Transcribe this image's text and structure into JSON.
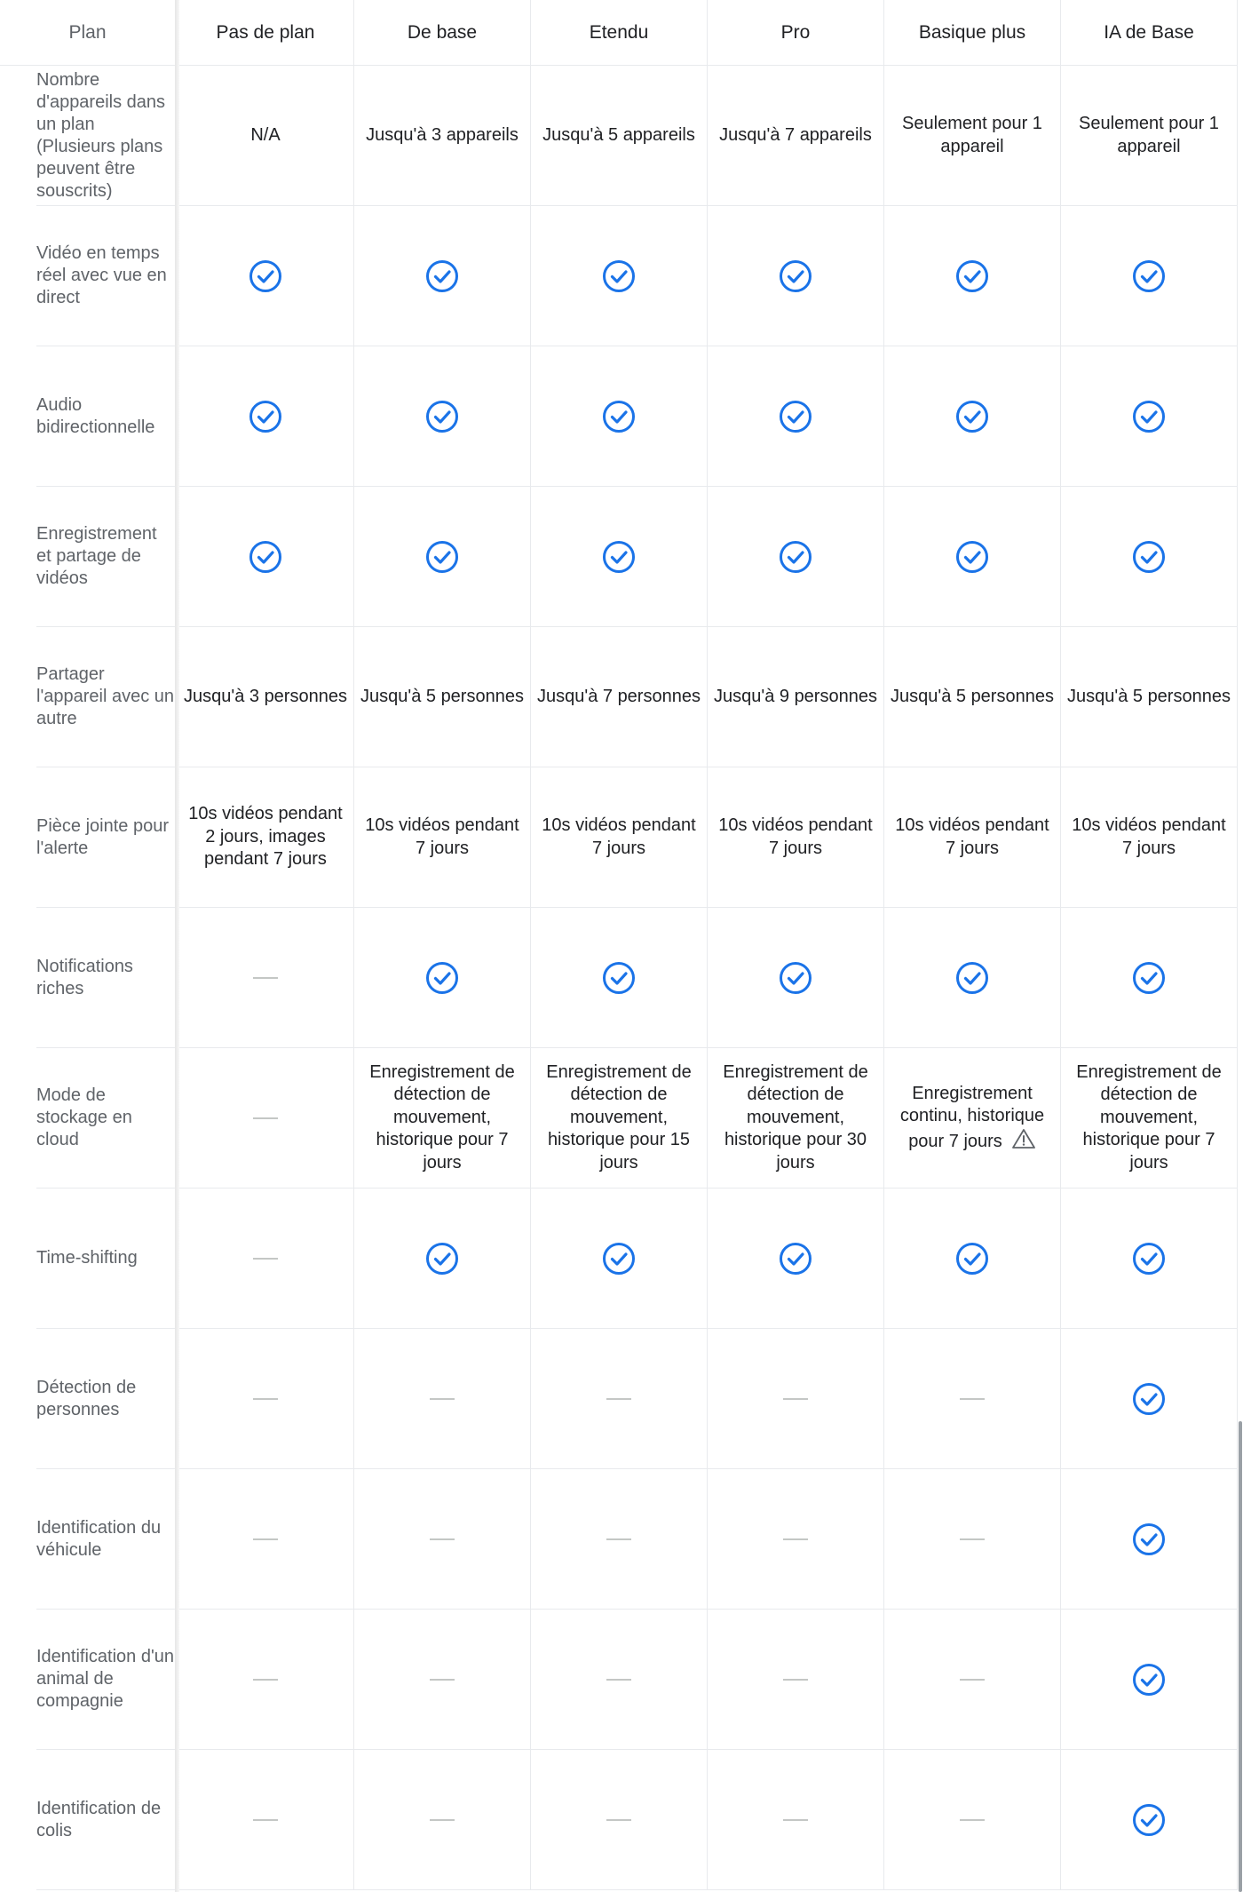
{
  "header": {
    "label": "Plan",
    "plans": [
      "Pas de plan",
      "De base",
      "Etendu",
      "Pro",
      "Basique plus",
      "IA de Base"
    ]
  },
  "rows": [
    {
      "label": "Nombre d'appareils dans un plan (Plusieurs plans peuvent être souscrits)",
      "cells": [
        {
          "type": "text",
          "text": "N/A"
        },
        {
          "type": "text",
          "text": "Jusqu'à 3 appareils"
        },
        {
          "type": "text",
          "text": "Jusqu'à 5 appareils"
        },
        {
          "type": "text",
          "text": "Jusqu'à 7 appareils"
        },
        {
          "type": "text",
          "text": "Seulement pour 1 appareil"
        },
        {
          "type": "text",
          "text": "Seulement pour 1 appareil"
        }
      ]
    },
    {
      "label": "Vidéo en temps réel avec vue en direct",
      "cells": [
        {
          "type": "check"
        },
        {
          "type": "check"
        },
        {
          "type": "check"
        },
        {
          "type": "check"
        },
        {
          "type": "check"
        },
        {
          "type": "check"
        }
      ]
    },
    {
      "label": "Audio bidirectionnelle",
      "cells": [
        {
          "type": "check"
        },
        {
          "type": "check"
        },
        {
          "type": "check"
        },
        {
          "type": "check"
        },
        {
          "type": "check"
        },
        {
          "type": "check"
        }
      ]
    },
    {
      "label": "Enregistrement et partage de vidéos",
      "cells": [
        {
          "type": "check"
        },
        {
          "type": "check"
        },
        {
          "type": "check"
        },
        {
          "type": "check"
        },
        {
          "type": "check"
        },
        {
          "type": "check"
        }
      ]
    },
    {
      "label": "Partager l'appareil avec un autre",
      "cells": [
        {
          "type": "text",
          "text": "Jusqu'à 3 personnes"
        },
        {
          "type": "text",
          "text": "Jusqu'à 5 personnes"
        },
        {
          "type": "text",
          "text": "Jusqu'à 7 personnes"
        },
        {
          "type": "text",
          "text": "Jusqu'à 9 personnes"
        },
        {
          "type": "text",
          "text": "Jusqu'à 5 personnes"
        },
        {
          "type": "text",
          "text": "Jusqu'à 5 personnes"
        }
      ]
    },
    {
      "label": "Pièce jointe pour l'alerte",
      "cells": [
        {
          "type": "text",
          "text": "10s vidéos pendant 2 jours, images pendant 7 jours"
        },
        {
          "type": "text",
          "text": "10s vidéos pendant 7 jours"
        },
        {
          "type": "text",
          "text": "10s vidéos pendant 7 jours"
        },
        {
          "type": "text",
          "text": "10s vidéos pendant 7 jours"
        },
        {
          "type": "text",
          "text": "10s vidéos pendant 7 jours"
        },
        {
          "type": "text",
          "text": "10s vidéos pendant 7 jours"
        }
      ]
    },
    {
      "label": "Notifications riches",
      "cells": [
        {
          "type": "dash"
        },
        {
          "type": "check"
        },
        {
          "type": "check"
        },
        {
          "type": "check"
        },
        {
          "type": "check"
        },
        {
          "type": "check"
        }
      ]
    },
    {
      "label": "Mode de stockage en cloud",
      "cells": [
        {
          "type": "dash"
        },
        {
          "type": "text",
          "text": "Enregistrement de détection de mouvement, historique pour 7 jours"
        },
        {
          "type": "text",
          "text": "Enregistrement de détection de mouvement, historique pour 15 jours"
        },
        {
          "type": "text",
          "text": "Enregistrement de détection de mouvement, historique pour 30 jours"
        },
        {
          "type": "text",
          "text": "Enregistrement continu, historique pour 7 jours",
          "warning": true
        },
        {
          "type": "text",
          "text": "Enregistrement de détection de mouvement, historique pour 7 jours"
        }
      ]
    },
    {
      "label": "Time-shifting",
      "cells": [
        {
          "type": "dash"
        },
        {
          "type": "check"
        },
        {
          "type": "check"
        },
        {
          "type": "check"
        },
        {
          "type": "check"
        },
        {
          "type": "check"
        }
      ]
    },
    {
      "label": "Détection de personnes",
      "cells": [
        {
          "type": "dash"
        },
        {
          "type": "dash"
        },
        {
          "type": "dash"
        },
        {
          "type": "dash"
        },
        {
          "type": "dash"
        },
        {
          "type": "check"
        }
      ]
    },
    {
      "label": "Identification du véhicule",
      "cells": [
        {
          "type": "dash"
        },
        {
          "type": "dash"
        },
        {
          "type": "dash"
        },
        {
          "type": "dash"
        },
        {
          "type": "dash"
        },
        {
          "type": "check"
        }
      ]
    },
    {
      "label": "Identification d'un animal de compagnie",
      "cells": [
        {
          "type": "dash"
        },
        {
          "type": "dash"
        },
        {
          "type": "dash"
        },
        {
          "type": "dash"
        },
        {
          "type": "dash"
        },
        {
          "type": "check"
        }
      ]
    },
    {
      "label": "Identification de colis",
      "cells": [
        {
          "type": "dash"
        },
        {
          "type": "dash"
        },
        {
          "type": "dash"
        },
        {
          "type": "dash"
        },
        {
          "type": "dash"
        },
        {
          "type": "check"
        }
      ]
    }
  ],
  "colors": {
    "check": "#1a73e8",
    "dash": "#c4c7c5",
    "warning": "#5f6368",
    "label_text": "#5f6368",
    "cell_text": "#202124"
  },
  "icons": {
    "check": "check-circle-icon",
    "dash": "dash-icon",
    "warning": "warning-triangle-icon"
  }
}
